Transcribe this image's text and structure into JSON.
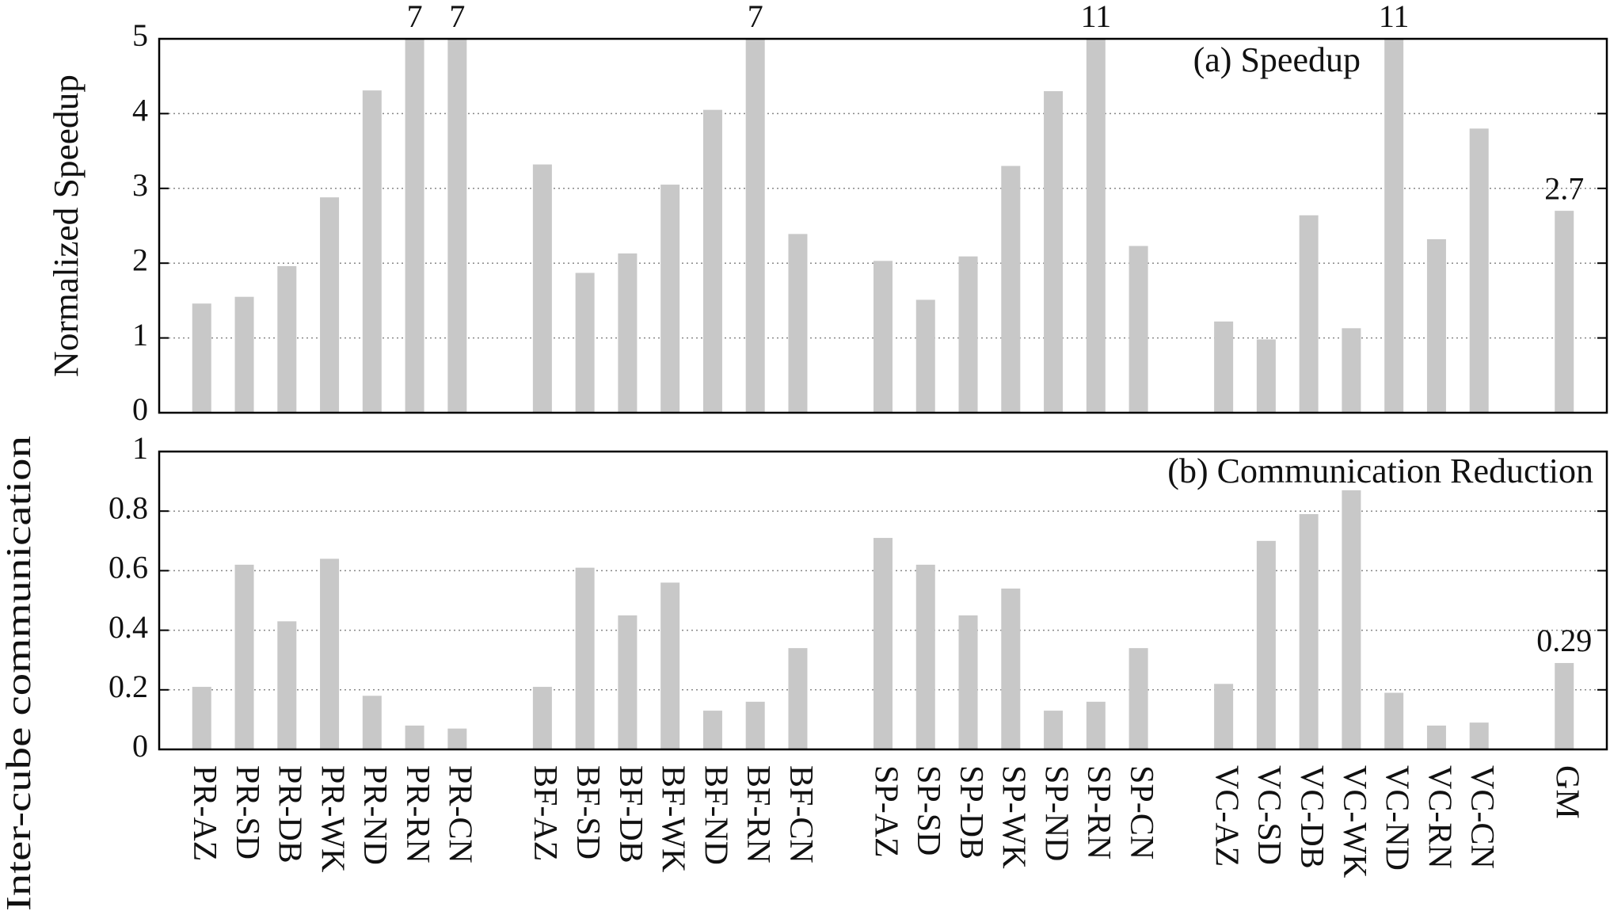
{
  "chart_data": [
    {
      "type": "bar",
      "ylabel": "Normalized Speedup",
      "annotation": "(a) Speedup",
      "color": "#c8c8c8",
      "grid": true,
      "ylim": [
        0,
        5
      ],
      "yticks": [
        0,
        1,
        2,
        3,
        4,
        5
      ],
      "values": [
        1.46,
        1.55,
        1.96,
        2.88,
        4.31,
        7,
        7,
        null,
        3.32,
        1.87,
        2.13,
        3.05,
        4.05,
        7,
        2.39,
        null,
        2.03,
        1.51,
        2.09,
        3.3,
        4.3,
        11,
        2.23,
        null,
        1.22,
        0.98,
        2.64,
        1.13,
        11,
        2.32,
        3.8,
        null,
        2.7
      ],
      "value_labels": [
        null,
        null,
        null,
        null,
        null,
        "7",
        "7",
        null,
        null,
        null,
        null,
        null,
        null,
        "7",
        null,
        null,
        null,
        null,
        null,
        null,
        null,
        "11",
        null,
        null,
        null,
        null,
        null,
        null,
        "11",
        null,
        null,
        null,
        "2.7"
      ]
    },
    {
      "type": "bar",
      "ylabel": "Inter-cube communication",
      "annotation": "(b) Communication Reduction",
      "color": "#c8c8c8",
      "grid": true,
      "ylim": [
        0,
        1
      ],
      "yticks": [
        0,
        0.2,
        0.4,
        0.6,
        0.8,
        1
      ],
      "categories": [
        "PR-AZ",
        "PR-SD",
        "PR-DB",
        "PR-WK",
        "PR-ND",
        "PR-RN",
        "PR-CN",
        null,
        "BF-AZ",
        "BF-SD",
        "BF-DB",
        "BF-WK",
        "BF-ND",
        "BF-RN",
        "BF-CN",
        null,
        "SP-AZ",
        "SP-SD",
        "SP-DB",
        "SP-WK",
        "SP-ND",
        "SP-RN",
        "SP-CN",
        null,
        "VC-AZ",
        "VC-SD",
        "VC-DB",
        "VC-WK",
        "VC-ND",
        "VC-RN",
        "VC-CN",
        null,
        "GM"
      ],
      "values": [
        0.21,
        0.62,
        0.43,
        0.64,
        0.18,
        0.08,
        0.07,
        null,
        0.21,
        0.61,
        0.45,
        0.56,
        0.13,
        0.16,
        0.34,
        null,
        0.71,
        0.62,
        0.45,
        0.54,
        0.13,
        0.16,
        0.34,
        null,
        0.22,
        0.7,
        0.79,
        0.87,
        0.19,
        0.08,
        0.09,
        null,
        0.29
      ],
      "value_labels": [
        null,
        null,
        null,
        null,
        null,
        null,
        null,
        null,
        null,
        null,
        null,
        null,
        null,
        null,
        null,
        null,
        null,
        null,
        null,
        null,
        null,
        null,
        null,
        null,
        null,
        null,
        null,
        null,
        null,
        null,
        null,
        null,
        "0.29"
      ]
    }
  ]
}
